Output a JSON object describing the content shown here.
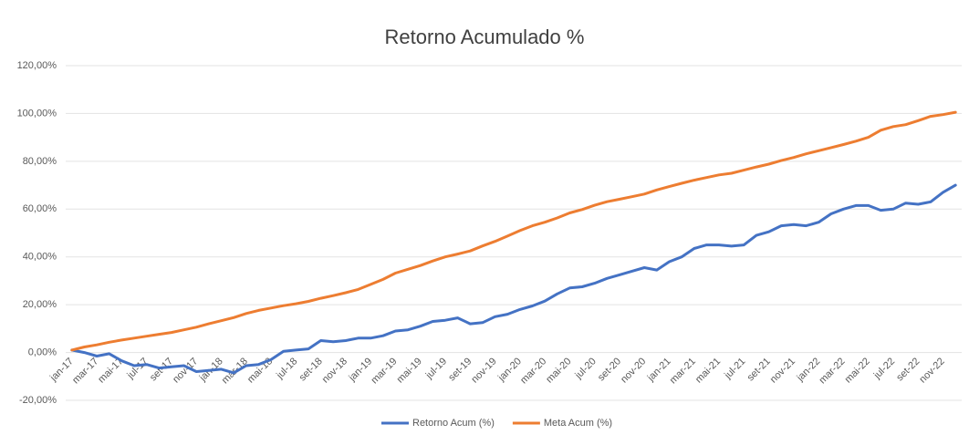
{
  "chart_data": {
    "type": "line",
    "title": "Retorno Acumulado %",
    "categories": [
      "jan-17",
      null,
      "mar-17",
      null,
      "mai-17",
      null,
      "jul-17",
      null,
      "set-17",
      null,
      "nov-17",
      null,
      "jan-18",
      null,
      "mar-18",
      null,
      "mai-18",
      null,
      "jul-18",
      null,
      "set-18",
      null,
      "nov-18",
      null,
      "jan-19",
      null,
      "mar-19",
      null,
      "mai-19",
      null,
      "jul-19",
      null,
      "set-19",
      null,
      "nov-19",
      null,
      "jan-20",
      null,
      "mar-20",
      null,
      "mai-20",
      null,
      "jul-20",
      null,
      "set-20",
      null,
      "nov-20",
      null,
      "jan-21",
      null,
      "mar-21",
      null,
      "mai-21",
      null,
      "jul-21",
      null,
      "set-21",
      null,
      "nov-21",
      null,
      "jan-22",
      null,
      "mar-22",
      null,
      "mai-22",
      null,
      "jul-22",
      null,
      "set-22",
      null,
      "nov-22",
      null
    ],
    "series": [
      {
        "name": "Retorno Acum (%)",
        "color": "#4472c4",
        "values": [
          1,
          0,
          -1.5,
          -0.5,
          -3.5,
          -5.5,
          -5,
          -6.5,
          -6,
          -5.5,
          -8,
          -7.5,
          -7,
          -8.5,
          -5.5,
          -5,
          -3,
          0.5,
          1,
          1.5,
          5,
          4.5,
          5,
          6,
          6,
          7,
          9,
          9.5,
          11,
          13,
          13.5,
          14.5,
          12,
          12.5,
          15,
          16,
          18,
          19.5,
          21.5,
          24.5,
          27,
          27.5,
          29,
          31,
          32.5,
          34,
          35.5,
          34.5,
          38,
          40,
          43.5,
          45,
          45,
          44.5,
          45,
          49,
          50.5,
          53,
          53.5,
          53,
          54.5,
          58,
          60,
          61.5,
          61.5,
          59.5,
          60,
          62.5,
          62,
          63,
          67,
          70
        ]
      },
      {
        "name": "Meta Acum (%)",
        "color": "#ed7d31",
        "values": [
          1,
          2.3,
          3.2,
          4.3,
          5.2,
          6,
          6.8,
          7.6,
          8.4,
          9.5,
          10.6,
          12,
          13.3,
          14.6,
          16.3,
          17.6,
          18.6,
          19.6,
          20.4,
          21.4,
          22.7,
          23.8,
          25,
          26.4,
          28.5,
          30.6,
          33.2,
          34.8,
          36.4,
          38.3,
          40,
          41.2,
          42.5,
          44.6,
          46.5,
          48.7,
          51,
          53,
          54.5,
          56.3,
          58.4,
          59.8,
          61.6,
          63.1,
          64.1,
          65.2,
          66.3,
          68,
          69.4,
          70.8,
          72.1,
          73.2,
          74.3,
          75,
          76.3,
          77.6,
          78.8,
          80.3,
          81.6,
          83.1,
          84.4,
          85.7,
          87,
          88.4,
          90,
          93,
          94.5,
          95.3,
          97,
          98.8,
          99.5,
          100.5
        ]
      }
    ],
    "ylim": [
      -20,
      120
    ],
    "yticks": [
      {
        "value": -20,
        "label": "-20,00%"
      },
      {
        "value": 0,
        "label": "0,00%"
      },
      {
        "value": 20,
        "label": "20,00%"
      },
      {
        "value": 40,
        "label": "40,00%"
      },
      {
        "value": 60,
        "label": "60,00%"
      },
      {
        "value": 80,
        "label": "80,00%"
      },
      {
        "value": 100,
        "label": "100,00%"
      },
      {
        "value": 120,
        "label": "120,00%"
      }
    ],
    "grid": true,
    "legend": "bottom"
  }
}
